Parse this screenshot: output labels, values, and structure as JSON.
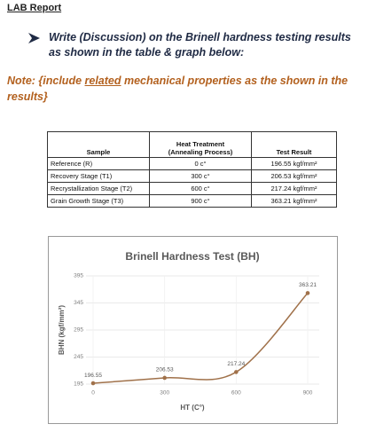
{
  "header": {
    "title": "LAB Report"
  },
  "instruction": {
    "text": "Write (Discussion) on the Brinell hardness testing results as shown in the table & graph below:"
  },
  "note": {
    "parts": [
      "Note: {include ",
      "related",
      " mechanical properties as the shown in the results}"
    ]
  },
  "table": {
    "header": [
      "Sample",
      [
        "Heat Treatment",
        "(Annealing Process)"
      ],
      "Test Result"
    ],
    "rows": [
      [
        "Reference (R)",
        "0 c°",
        "196.55 kgf/mm²"
      ],
      [
        "Recovery Stage (T1)",
        "300 c°",
        "206.53 kgf/mm²"
      ],
      [
        "Recrystallization Stage (T2)",
        "600 c°",
        "217.24 kgf/mm²"
      ],
      [
        "Grain Growth Stage (T3)",
        "900 c°",
        "363.21 kgf/mm²"
      ]
    ]
  },
  "chart": {
    "type": "line",
    "title": "Brinell Hardness Test (BH)",
    "x_label": "HT (C°)",
    "y_label": "BHN (kgf/mm²)",
    "x": [
      0,
      300,
      600,
      900
    ],
    "series": [
      {
        "name": "BHN",
        "color": "#a0714a",
        "values": [
          196.55,
          206.53,
          217.24,
          363.21
        ]
      }
    ],
    "xlim": [
      0,
      900
    ],
    "xticks": [
      0,
      300,
      600,
      900
    ],
    "ylim": [
      195,
      395
    ],
    "yticks": [
      195,
      245,
      295,
      345,
      395
    ],
    "grid": true
  }
}
